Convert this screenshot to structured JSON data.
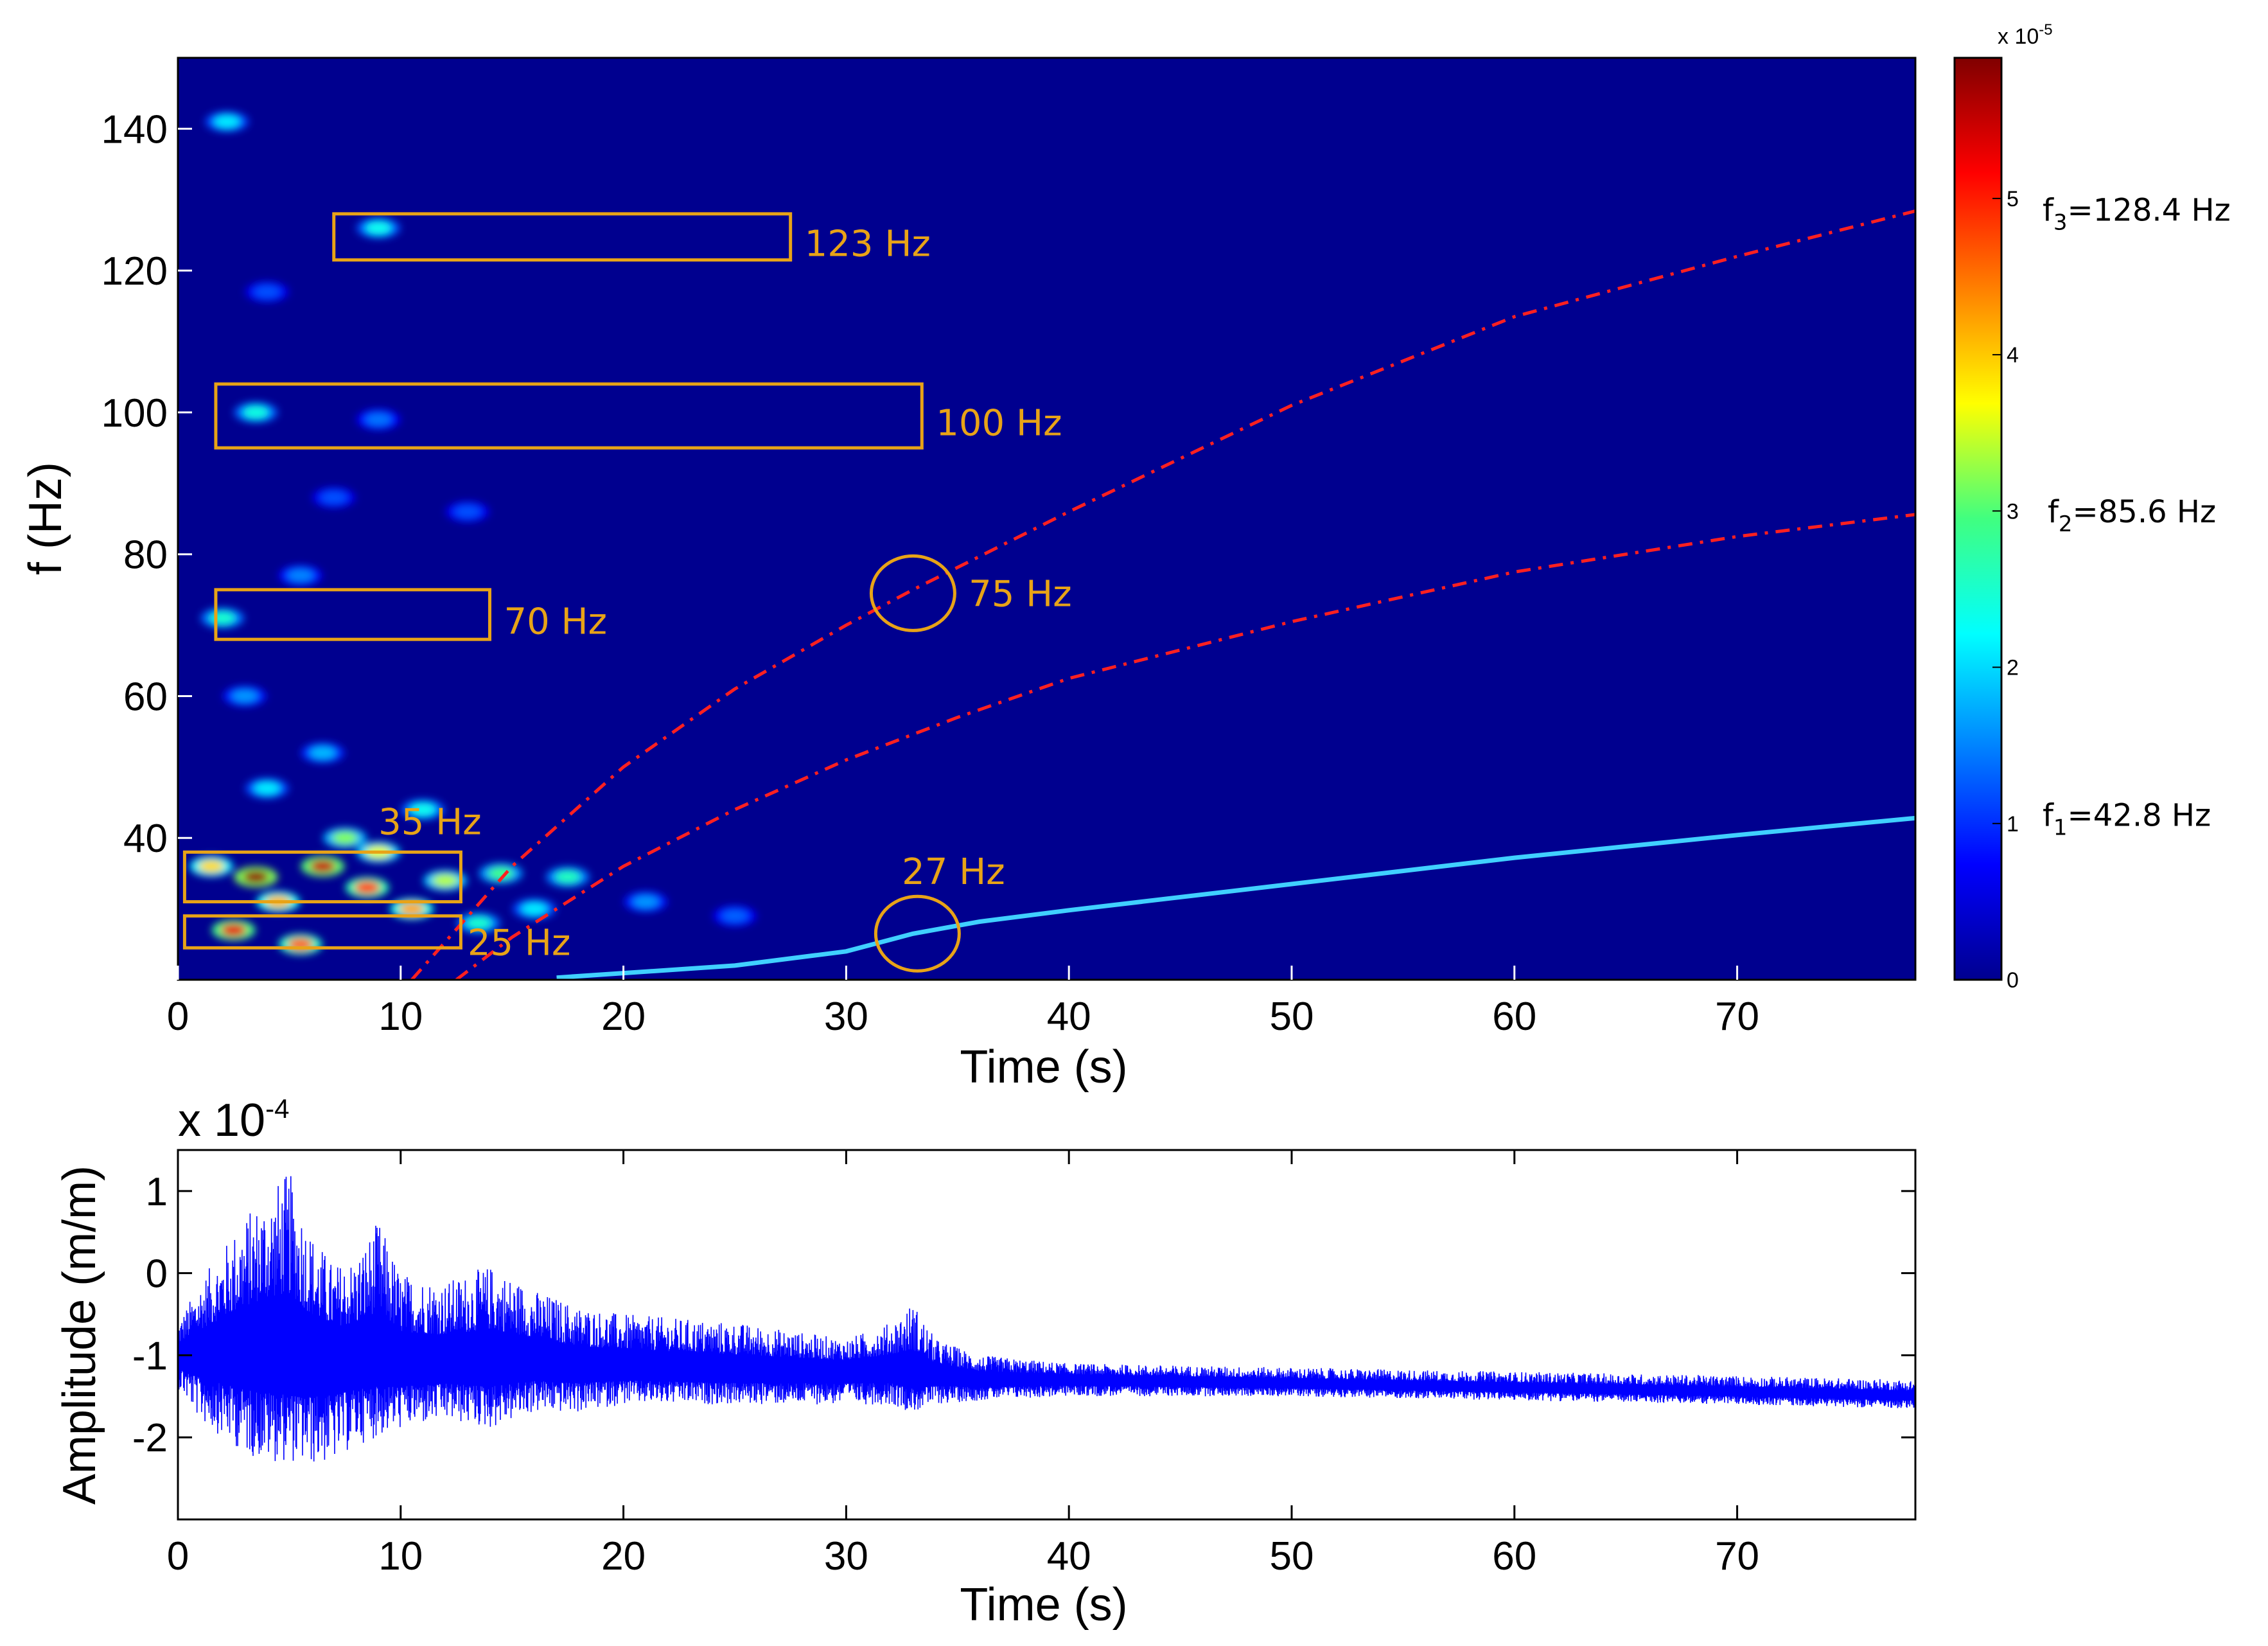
{
  "chart_data": [
    {
      "type": "heatmap",
      "title": "",
      "xlabel": "Time (s)",
      "ylabel": "f (Hz)",
      "xlim": [
        0,
        78
      ],
      "ylim": [
        20,
        150
      ],
      "xticks": [
        0,
        10,
        20,
        30,
        40,
        50,
        60,
        70
      ],
      "yticks": [
        40,
        60,
        80,
        100,
        120,
        140
      ],
      "colormap": "jet",
      "background_color": "#00008F",
      "colorbar": {
        "multiplier": "x 10",
        "exponent": "-5",
        "range": [
          0,
          5.9
        ],
        "ticks": [
          0,
          1,
          2,
          3,
          4,
          5
        ]
      },
      "frequency_lines": [
        {
          "label_base": "f",
          "label_sub": "1",
          "label_rest": "=42.8 Hz",
          "color": "#40D0FF",
          "style": "solid",
          "points": [
            [
              17,
              20.3
            ],
            [
              25,
              22
            ],
            [
              30,
              24
            ],
            [
              33,
              26.5
            ],
            [
              36,
              28.2
            ],
            [
              40,
              29.8
            ],
            [
              50,
              33.5
            ],
            [
              60,
              37.2
            ],
            [
              70,
              40.4
            ],
            [
              78,
              42.8
            ]
          ]
        },
        {
          "label_base": "f",
          "label_sub": "2",
          "label_rest": "=85.6 Hz",
          "color": "#FF2020",
          "style": "dash-dot",
          "points": [
            [
              12.5,
              20
            ],
            [
              15,
              26
            ],
            [
              20,
              36
            ],
            [
              25,
              44
            ],
            [
              30,
              51
            ],
            [
              35,
              57
            ],
            [
              40,
              62.5
            ],
            [
              50,
              70.5
            ],
            [
              60,
              77.5
            ],
            [
              70,
              82.5
            ],
            [
              78,
              85.6
            ]
          ]
        },
        {
          "label_base": "f",
          "label_sub": "3",
          "label_rest": "=128.4 Hz",
          "color": "#FF2020",
          "style": "dash-dot",
          "points": [
            [
              10.5,
              20
            ],
            [
              15,
              36
            ],
            [
              20,
              50
            ],
            [
              25,
              61
            ],
            [
              30,
              70
            ],
            [
              33,
              75
            ],
            [
              40,
              86
            ],
            [
              50,
              101
            ],
            [
              60,
              113.5
            ],
            [
              70,
              122
            ],
            [
              78,
              128.4
            ]
          ]
        }
      ],
      "annotation_boxes": [
        {
          "label": "123 Hz",
          "t0": 7,
          "t1": 27.5,
          "f0": 121.5,
          "f1": 128
        },
        {
          "label": "100 Hz",
          "t0": 1.7,
          "t1": 33.4,
          "f0": 95,
          "f1": 104
        },
        {
          "label": "70 Hz",
          "t0": 1.7,
          "t1": 14,
          "f0": 68,
          "f1": 75
        },
        {
          "label": "35 Hz",
          "t0": 0.3,
          "t1": 12.7,
          "f0": 31,
          "f1": 38
        },
        {
          "label": "25 Hz",
          "t0": 0.3,
          "t1": 12.7,
          "f0": 24.5,
          "f1": 29
        }
      ],
      "annotation_circles": [
        {
          "label": "75 Hz",
          "t": 33,
          "f": 74.5
        },
        {
          "label": "27 Hz",
          "t": 33.2,
          "f": 26.5
        }
      ],
      "hotspots": [
        {
          "t": 3.5,
          "f": 34.5,
          "level": 5.8
        },
        {
          "t": 6.5,
          "f": 36,
          "level": 5.5
        },
        {
          "t": 2.5,
          "f": 27,
          "level": 5.3
        },
        {
          "t": 8.5,
          "f": 33,
          "level": 4.8
        },
        {
          "t": 5.5,
          "f": 25,
          "level": 4.6
        },
        {
          "t": 10.5,
          "f": 30,
          "level": 4.2
        },
        {
          "t": 4.5,
          "f": 31,
          "level": 4.1
        },
        {
          "t": 1.5,
          "f": 36,
          "level": 3.9
        },
        {
          "t": 9,
          "f": 38,
          "level": 3.6
        },
        {
          "t": 12,
          "f": 34,
          "level": 3.4
        },
        {
          "t": 7.5,
          "f": 40,
          "level": 3.2
        },
        {
          "t": 14.5,
          "f": 35,
          "level": 2.9
        },
        {
          "t": 17.5,
          "f": 34.5,
          "level": 2.6
        },
        {
          "t": 2,
          "f": 71,
          "level": 2.5
        },
        {
          "t": 3.5,
          "f": 100,
          "level": 2.4
        },
        {
          "t": 9,
          "f": 126,
          "level": 2.3
        },
        {
          "t": 2.2,
          "f": 141,
          "level": 2.1
        },
        {
          "t": 11,
          "f": 44,
          "level": 2.3
        },
        {
          "t": 4,
          "f": 47,
          "level": 2.1
        },
        {
          "t": 6.5,
          "f": 52,
          "level": 1.8
        },
        {
          "t": 3,
          "f": 60,
          "level": 1.6
        },
        {
          "t": 13.5,
          "f": 28,
          "level": 2.5
        },
        {
          "t": 16,
          "f": 30,
          "level": 2.1
        },
        {
          "t": 21,
          "f": 31,
          "level": 1.6
        },
        {
          "t": 25,
          "f": 29,
          "level": 1.3
        },
        {
          "t": 5.5,
          "f": 77,
          "level": 1.5
        },
        {
          "t": 9,
          "f": 99,
          "level": 1.4
        },
        {
          "t": 13,
          "f": 86,
          "level": 1.2
        },
        {
          "t": 7,
          "f": 88,
          "level": 1.2
        },
        {
          "t": 4,
          "f": 117,
          "level": 1.2
        }
      ]
    },
    {
      "type": "line",
      "title": "",
      "xlabel": "Time (s)",
      "ylabel": "Amplitude (m/m)",
      "scale_multiplier": "x 10",
      "scale_exponent": "-4",
      "xlim": [
        0,
        78
      ],
      "ylim": [
        -3,
        1.5
      ],
      "xticks": [
        0,
        10,
        20,
        30,
        40,
        50,
        60,
        70
      ],
      "yticks": [
        1,
        0,
        -1,
        -2
      ],
      "ytick_labels": [
        "1",
        "0",
        "-1",
        "-2"
      ],
      "series": [
        {
          "color": "#0000FF",
          "envelope_t": [
            0,
            1,
            2,
            3,
            4,
            5,
            6,
            7,
            8,
            9,
            10,
            12,
            14,
            16,
            18,
            20,
            25,
            30,
            32,
            33,
            34,
            36,
            40,
            50,
            60,
            70,
            78
          ],
          "envelope_center": [
            -1.0,
            -1.0,
            -1.0,
            -1.0,
            -1.0,
            -1.05,
            -1.05,
            -1.05,
            -1.05,
            -1.05,
            -1.1,
            -1.1,
            -1.1,
            -1.1,
            -1.15,
            -1.15,
            -1.2,
            -1.2,
            -1.2,
            -1.25,
            -1.25,
            -1.3,
            -1.3,
            -1.35,
            -1.4,
            -1.45,
            -1.5
          ],
          "envelope_upper": [
            -0.6,
            -0.1,
            0.3,
            0.7,
            1.0,
            1.25,
            0.5,
            0.1,
            0.2,
            0.65,
            0.0,
            -0.1,
            0.1,
            -0.2,
            -0.4,
            -0.5,
            -0.6,
            -0.8,
            -0.6,
            -0.35,
            -0.8,
            -1.0,
            -1.1,
            -1.15,
            -1.2,
            -1.25,
            -1.3
          ],
          "envelope_lower": [
            -1.4,
            -1.8,
            -2.0,
            -2.2,
            -2.3,
            -2.3,
            -2.35,
            -2.3,
            -2.1,
            -2.0,
            -1.9,
            -1.8,
            -1.9,
            -1.7,
            -1.7,
            -1.6,
            -1.6,
            -1.6,
            -1.6,
            -1.7,
            -1.6,
            -1.55,
            -1.5,
            -1.5,
            -1.55,
            -1.6,
            -1.65
          ]
        }
      ]
    }
  ]
}
